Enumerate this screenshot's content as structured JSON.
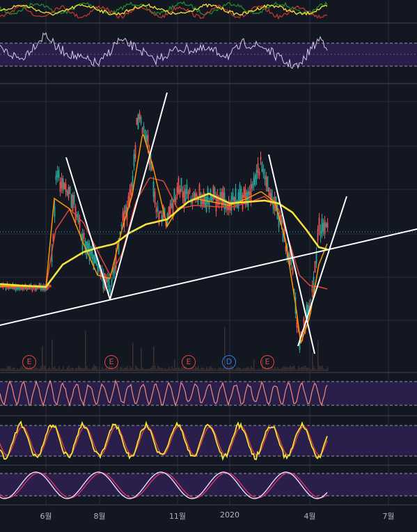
{
  "colors": {
    "background": "#131722",
    "grid": "#2a2e39",
    "band": "#2a1f4a",
    "price_up": "#26a69a",
    "price_down": "#ef5350",
    "ma_fast": "#ff9800",
    "ma_mid": "#e0483c",
    "ma_slow": "#f5e23a",
    "trendline": "#ffffff",
    "rsi_line": "#d9c6f2",
    "osc_line": "#f08a80",
    "stoch_k": "#f5e23a",
    "stoch_d": "#e0483c",
    "stoch_rsi_k": "#e8e0ff",
    "stoch_rsi_d": "#d6336c",
    "earnings": "#e0483c",
    "dividend": "#2f7de1",
    "volume": "#3b2f2f"
  },
  "chart_data": {
    "type": "line",
    "x_axis_labels": [
      "6월",
      "8월",
      "11월",
      "2020",
      "4월",
      "7월"
    ],
    "event_markers": [
      {
        "label": "E",
        "kind": "earnings"
      },
      {
        "label": "E",
        "kind": "earnings"
      },
      {
        "label": "E",
        "kind": "earnings"
      },
      {
        "label": "D",
        "kind": "dividend"
      },
      {
        "label": "E",
        "kind": "earnings"
      }
    ],
    "panes": [
      "indicator-top",
      "rsi",
      "price",
      "oscillator",
      "stochastic",
      "stochastic-rsi"
    ],
    "grid": true
  }
}
